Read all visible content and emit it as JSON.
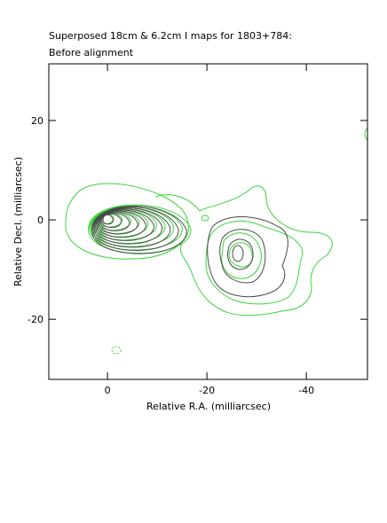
{
  "chart_data": {
    "type": "contour",
    "title": "Superposed 18cm & 6.2cm I maps for 1803+784:",
    "subtitle": "Before alignment",
    "x_label": "Relative R.A. (milliarcsec)",
    "y_label": "Relative Decl. (milliarcsec)",
    "xlim": [
      11.8,
      -52.3
    ],
    "ylim": [
      -32.1,
      31.4
    ],
    "xticks": [
      0,
      -20,
      -40
    ],
    "yticks": [
      -20,
      0,
      20
    ]
  }
}
